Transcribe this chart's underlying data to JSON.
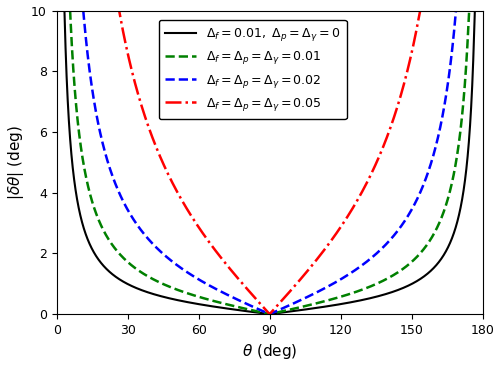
{
  "title": "",
  "xlabel": "$\\theta$ (deg)",
  "ylabel": "$|\\delta\\theta|$ (deg)",
  "xlim": [
    0,
    180
  ],
  "ylim": [
    0,
    10
  ],
  "xticks": [
    0,
    30,
    60,
    90,
    120,
    150,
    180
  ],
  "yticks": [
    0,
    2,
    4,
    6,
    8,
    10
  ],
  "lines": [
    {
      "label": "$\\Delta_f = 0.01,\\ \\Delta_p = \\Delta_\\gamma = 0$",
      "delta_f": 0.01,
      "delta_p": 0.0,
      "delta_gamma": 0.0,
      "color": "black",
      "linestyle": "-",
      "linewidth": 1.5
    },
    {
      "label": "$\\Delta_f = \\Delta_p = \\Delta_\\gamma = 0.01$",
      "delta_f": 0.01,
      "delta_p": 0.01,
      "delta_gamma": 0.01,
      "color": "green",
      "linestyle": "--",
      "linewidth": 1.8
    },
    {
      "label": "$\\Delta_f = \\Delta_p = \\Delta_\\gamma = 0.02$",
      "delta_f": 0.02,
      "delta_p": 0.02,
      "delta_gamma": 0.02,
      "color": "blue",
      "linestyle": "--",
      "linewidth": 1.8
    },
    {
      "label": "$\\Delta_f = \\Delta_p = \\Delta_\\gamma = 0.05$",
      "delta_f": 0.05,
      "delta_p": 0.05,
      "delta_gamma": 0.05,
      "color": "red",
      "linestyle": "-.",
      "linewidth": 1.8
    }
  ],
  "legend_fontsize": 9,
  "figsize": [
    5.0,
    3.67
  ],
  "dpi": 100
}
